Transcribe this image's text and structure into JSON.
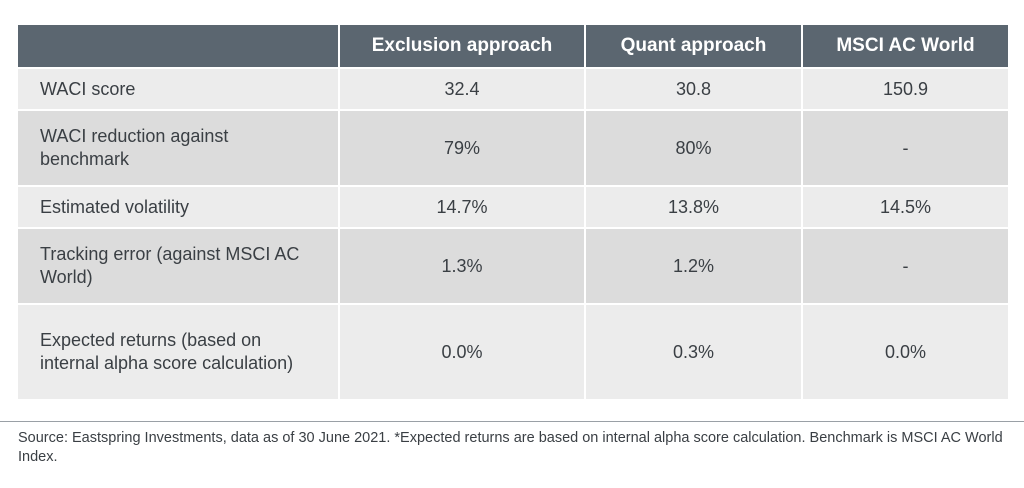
{
  "table": {
    "headers": [
      "",
      "Exclusion approach",
      "Quant approach",
      "MSCI AC World"
    ],
    "rows": [
      {
        "label": "WACI score",
        "values": [
          "32.4",
          "30.8",
          "150.9"
        ]
      },
      {
        "label": "WACI reduction against benchmark",
        "values": [
          "79%",
          "80%",
          "-"
        ]
      },
      {
        "label": "Estimated volatility",
        "values": [
          "14.7%",
          "13.8%",
          "14.5%"
        ]
      },
      {
        "label": "Tracking error (against MSCI AC World)",
        "values": [
          "1.3%",
          "1.2%",
          "-"
        ]
      },
      {
        "label": "Expected returns (based on internal alpha score calculation)",
        "values": [
          "0.0%",
          "0.3%",
          "0.0%"
        ]
      }
    ]
  },
  "footnote": "Source: Eastspring Investments, data as of 30 June 2021. *Expected returns are based on internal alpha score calculation. Benchmark is MSCI AC World Index."
}
